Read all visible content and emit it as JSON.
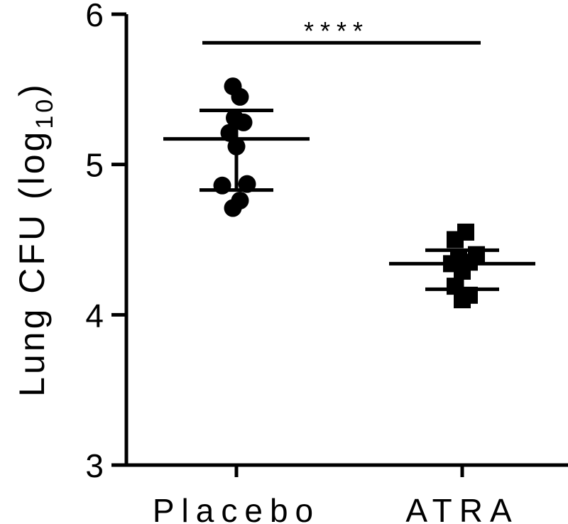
{
  "chart_data": {
    "type": "scatter",
    "ylabel_main": "Lung CFU (log",
    "ylabel_sub": "10",
    "ylabel_close": ")",
    "ylim": [
      3,
      6
    ],
    "yticks": [
      "3",
      "4",
      "5",
      "6"
    ],
    "categories": [
      "Placebo",
      "ATRA"
    ],
    "groups": [
      {
        "label": "Placebo",
        "marker": "circle",
        "mean": 5.17,
        "sd_upper": 5.36,
        "sd_lower": 4.83,
        "points": [
          {
            "dx": -0.02,
            "y": 5.52
          },
          {
            "dx": 0.02,
            "y": 5.45
          },
          {
            "dx": -0.01,
            "y": 5.31
          },
          {
            "dx": 0.04,
            "y": 5.28
          },
          {
            "dx": -0.04,
            "y": 5.21
          },
          {
            "dx": 0.0,
            "y": 5.12
          },
          {
            "dx": -0.08,
            "y": 4.86
          },
          {
            "dx": 0.06,
            "y": 4.87
          },
          {
            "dx": -0.02,
            "y": 4.71
          },
          {
            "dx": 0.02,
            "y": 4.76
          }
        ]
      },
      {
        "label": "ATRA",
        "marker": "square",
        "mean": 4.34,
        "sd_upper": 4.43,
        "sd_lower": 4.17,
        "points": [
          {
            "dx": -0.04,
            "y": 4.5
          },
          {
            "dx": 0.02,
            "y": 4.55
          },
          {
            "dx": 0.08,
            "y": 4.4
          },
          {
            "dx": -0.06,
            "y": 4.34
          },
          {
            "dx": -0.02,
            "y": 4.37
          },
          {
            "dx": 0.04,
            "y": 4.35
          },
          {
            "dx": 0.0,
            "y": 4.29
          },
          {
            "dx": -0.04,
            "y": 4.19
          },
          {
            "dx": 0.04,
            "y": 4.13
          },
          {
            "dx": 0.0,
            "y": 4.1
          }
        ]
      }
    ],
    "significance": {
      "label": "****",
      "from": "Placebo",
      "to": "ATRA",
      "y": 5.81
    }
  }
}
